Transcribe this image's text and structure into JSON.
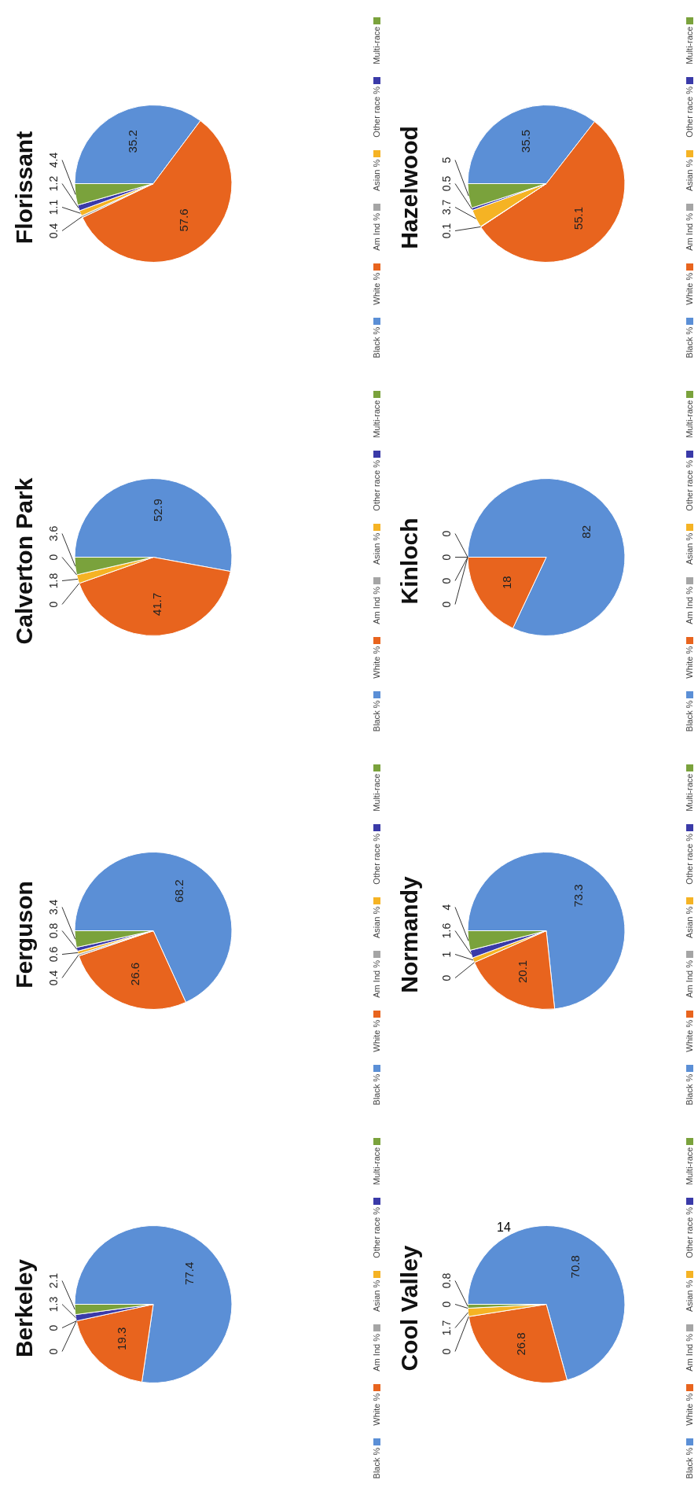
{
  "chart_data": [
    {
      "type": "pie",
      "title": "Berkeley",
      "categories": [
        "Black %",
        "White %",
        "Am Ind %",
        "Asian %",
        "Other race %",
        "Multi-race"
      ],
      "values": [
        77.4,
        19.3,
        0,
        0,
        1.3,
        2.1
      ],
      "colors": [
        "#5b8fd6",
        "#e8641e",
        "#a5a5a5",
        "#f5b324",
        "#3a3aa8",
        "#7aa23c"
      ],
      "legend": "bottom",
      "value_labels": [
        "77.4",
        "19.3",
        "0",
        "0",
        "1.3",
        "2.1"
      ],
      "annotations": [
        "14"
      ]
    },
    {
      "type": "pie",
      "title": "Ferguson",
      "categories": [
        "Black %",
        "White %",
        "Am Ind %",
        "Asian %",
        "Other race %",
        "Multi-race"
      ],
      "values": [
        68.2,
        26.6,
        0.4,
        0.6,
        0.8,
        3.4
      ],
      "colors": [
        "#5b8fd6",
        "#e8641e",
        "#a5a5a5",
        "#f5b324",
        "#3a3aa8",
        "#7aa23c"
      ],
      "legend": "bottom",
      "value_labels": [
        "68.2",
        "26.6",
        "0.4",
        "0.6",
        "0.8",
        "3.4"
      ]
    },
    {
      "type": "pie",
      "title": "Calverton Park",
      "categories": [
        "Black %",
        "White %",
        "Am Ind %",
        "Asian %",
        "Other race %",
        "Multi-race"
      ],
      "values": [
        52.9,
        41.7,
        0,
        1.8,
        0,
        3.6
      ],
      "colors": [
        "#5b8fd6",
        "#e8641e",
        "#a5a5a5",
        "#f5b324",
        "#3a3aa8",
        "#7aa23c"
      ],
      "legend": "bottom",
      "value_labels": [
        "52.9",
        "41.7",
        "0",
        "1.8",
        "0",
        "3.6"
      ]
    },
    {
      "type": "pie",
      "title": "Florissant",
      "categories": [
        "Black %",
        "White %",
        "Am Ind %",
        "Asian %",
        "Other race %",
        "Multi-race"
      ],
      "values": [
        35.2,
        57.6,
        0.4,
        1.1,
        1.2,
        4.4
      ],
      "colors": [
        "#5b8fd6",
        "#e8641e",
        "#a5a5a5",
        "#f5b324",
        "#3a3aa8",
        "#7aa23c"
      ],
      "legend": "bottom",
      "value_labels": [
        "35.2",
        "57.6",
        "0.4",
        "1.1",
        "1.2",
        "4.4"
      ]
    },
    {
      "type": "pie",
      "title": "Cool Valley",
      "categories": [
        "Black %",
        "White %",
        "Am Ind %",
        "Asian %",
        "Other race %",
        "Multi-race"
      ],
      "values": [
        70.8,
        26.8,
        0,
        1.7,
        0,
        0.8
      ],
      "colors": [
        "#5b8fd6",
        "#e8641e",
        "#a5a5a5",
        "#f5b324",
        "#3a3aa8",
        "#7aa23c"
      ],
      "legend": "bottom",
      "value_labels": [
        "70.8",
        "26.8",
        "0",
        "1.7",
        "0",
        "0.8"
      ]
    },
    {
      "type": "pie",
      "title": "Normandy",
      "categories": [
        "Black %",
        "White %",
        "Am Ind %",
        "Asian %",
        "Other race %",
        "Multi-race"
      ],
      "values": [
        73.3,
        20.1,
        0,
        1,
        1.6,
        4
      ],
      "colors": [
        "#5b8fd6",
        "#e8641e",
        "#a5a5a5",
        "#f5b324",
        "#3a3aa8",
        "#7aa23c"
      ],
      "legend": "bottom",
      "value_labels": [
        "73.3",
        "20.1",
        "0",
        "1",
        "1.6",
        "4"
      ]
    },
    {
      "type": "pie",
      "title": "Kinloch",
      "categories": [
        "Black %",
        "White %",
        "Am Ind %",
        "Asian %",
        "Other race %",
        "Multi-race"
      ],
      "values": [
        82,
        18,
        0,
        0,
        0,
        0
      ],
      "colors": [
        "#5b8fd6",
        "#e8641e",
        "#a5a5a5",
        "#f5b324",
        "#3a3aa8",
        "#7aa23c"
      ],
      "legend": "bottom",
      "value_labels": [
        "82",
        "18",
        "0",
        "0",
        "0",
        "0"
      ]
    },
    {
      "type": "pie",
      "title": "Hazelwood",
      "categories": [
        "Black %",
        "White %",
        "Am Ind %",
        "Asian %",
        "Other race %",
        "Multi-race"
      ],
      "values": [
        35.5,
        55.1,
        0.1,
        3.7,
        0.5,
        5
      ],
      "colors": [
        "#5b8fd6",
        "#e8641e",
        "#a5a5a5",
        "#f5b324",
        "#3a3aa8",
        "#7aa23c"
      ],
      "legend": "bottom",
      "value_labels": [
        "35.5",
        "55.1",
        "0.1",
        "3.7",
        "0.5",
        "5"
      ]
    }
  ]
}
